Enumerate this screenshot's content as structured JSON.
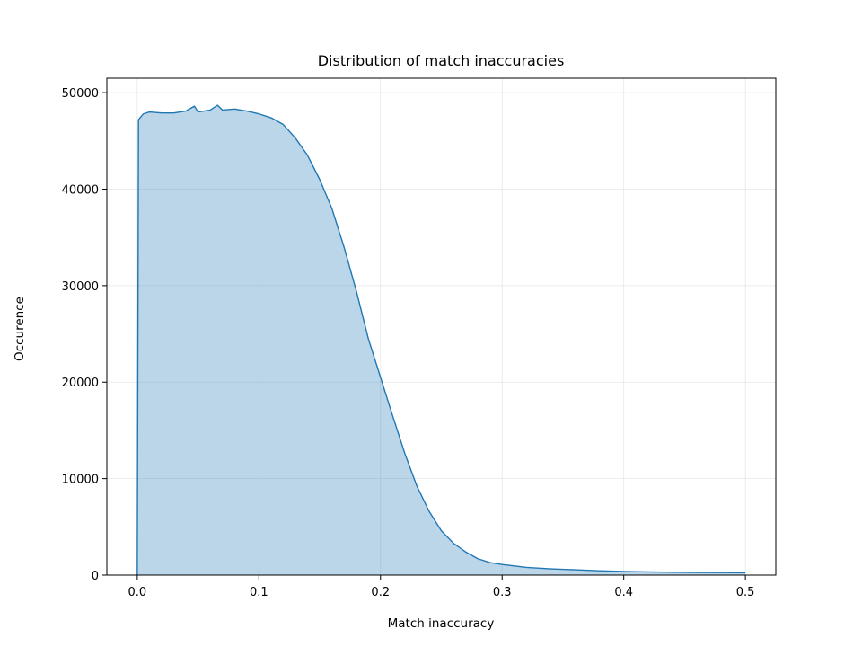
{
  "chart_data": {
    "type": "area",
    "title": "Distribution of match inaccuracies",
    "xlabel": "Match inaccuracy",
    "ylabel": "Occurence",
    "xlim": [
      -0.025,
      0.525
    ],
    "ylim": [
      0,
      51500
    ],
    "xticks": [
      0.0,
      0.1,
      0.2,
      0.3,
      0.4,
      0.5
    ],
    "xtick_labels": [
      "0.0",
      "0.1",
      "0.2",
      "0.3",
      "0.4",
      "0.5"
    ],
    "yticks": [
      0,
      10000,
      20000,
      30000,
      40000,
      50000
    ],
    "ytick_labels": [
      "0",
      "10000",
      "20000",
      "30000",
      "40000",
      "50000"
    ],
    "grid": true,
    "colors": {
      "line": "#1f77b4",
      "fill": "#1f77b4",
      "fill_alpha": 0.3
    },
    "series": [
      {
        "x": [
          0.0,
          0.001,
          0.005,
          0.01,
          0.02,
          0.03,
          0.04,
          0.047,
          0.05,
          0.06,
          0.066,
          0.07,
          0.08,
          0.09,
          0.1,
          0.11,
          0.12,
          0.13,
          0.14,
          0.15,
          0.16,
          0.17,
          0.18,
          0.19,
          0.2,
          0.21,
          0.22,
          0.23,
          0.24,
          0.25,
          0.26,
          0.27,
          0.28,
          0.29,
          0.3,
          0.32,
          0.34,
          0.36,
          0.38,
          0.4,
          0.42,
          0.44,
          0.46,
          0.48,
          0.5
        ],
        "y": [
          0,
          47200,
          47800,
          48000,
          47900,
          47900,
          48100,
          48600,
          48000,
          48200,
          48700,
          48200,
          48300,
          48100,
          47800,
          47400,
          46700,
          45300,
          43500,
          41000,
          38000,
          34000,
          29500,
          24500,
          20500,
          16500,
          12600,
          9200,
          6600,
          4600,
          3300,
          2400,
          1700,
          1300,
          1100,
          800,
          650,
          550,
          450,
          380,
          330,
          300,
          280,
          260,
          250
        ]
      }
    ]
  }
}
